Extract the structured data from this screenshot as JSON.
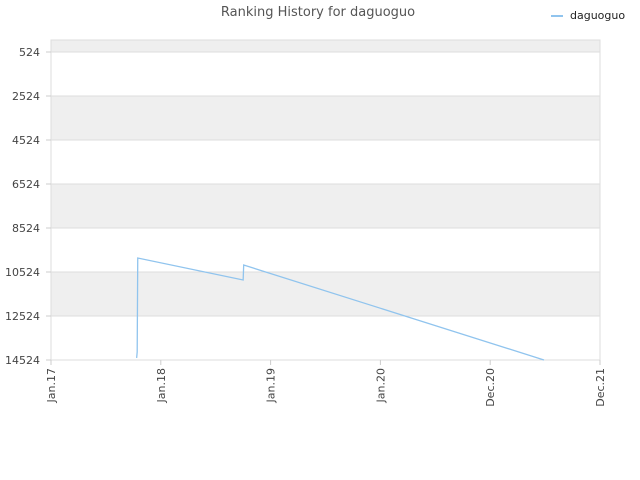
{
  "chart_data": {
    "type": "line",
    "title": "Ranking History for daguoguo",
    "series": [
      {
        "name": "daguoguo",
        "color": "#90c4ee",
        "x": [
          2017.78,
          2017.785,
          2017.79,
          2018.75,
          2018.755,
          2021.49
        ],
        "values": [
          14430,
          14160,
          9888,
          10888,
          10206,
          14524
        ]
      }
    ],
    "xlim": [
      2017,
      2022
    ],
    "xticks": [
      {
        "value": 2017,
        "label": "Jan.17"
      },
      {
        "value": 2018,
        "label": "Jan.18"
      },
      {
        "value": 2019,
        "label": "Jan.19"
      },
      {
        "value": 2020,
        "label": "Jan.20"
      },
      {
        "value": 2021,
        "label": "Dec.20"
      },
      {
        "value": 2022,
        "label": "Dec.21"
      }
    ],
    "ylim": [
      14524,
      -21
    ],
    "yticks": [
      524,
      2524,
      4524,
      6524,
      8524,
      10524,
      12524,
      14524
    ],
    "inverted_y": true,
    "grid": true,
    "legend": "top-right"
  }
}
